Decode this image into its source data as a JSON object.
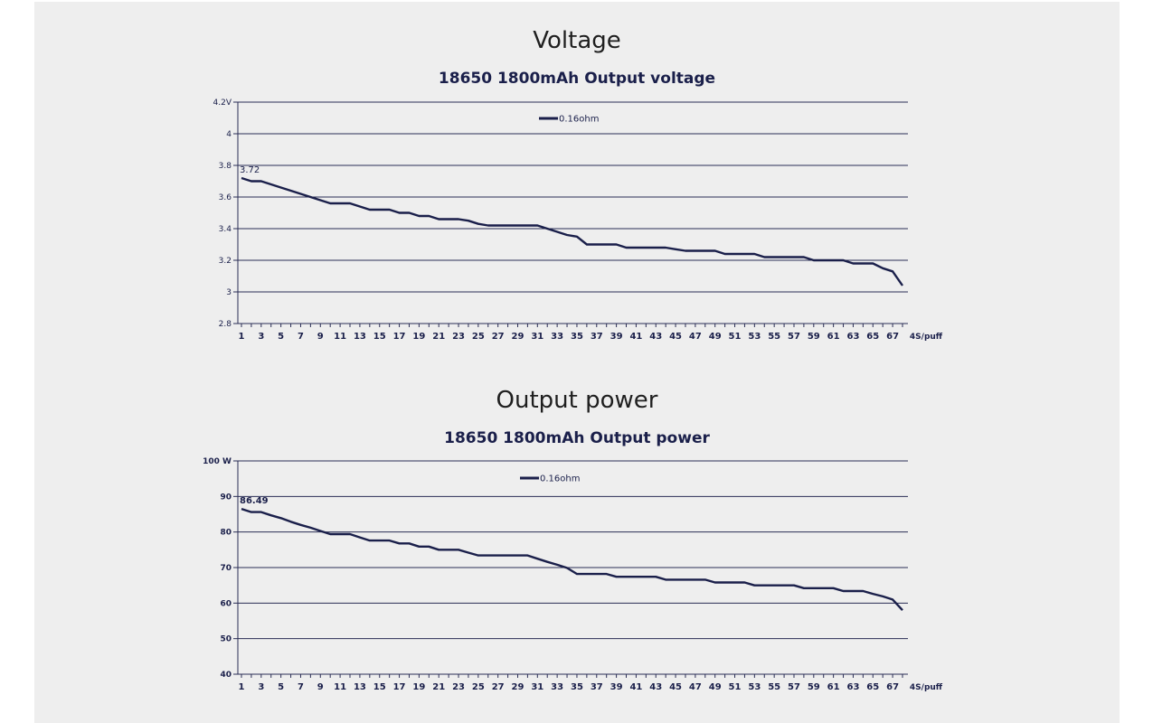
{
  "sections": [
    {
      "title": "Voltage",
      "chart_data": {
        "type": "line",
        "title": "18650  1800mAh Output voltage",
        "xlabel": "4S/puff",
        "ylabel": "",
        "x": [
          1,
          2,
          3,
          4,
          5,
          6,
          7,
          8,
          9,
          10,
          11,
          12,
          13,
          14,
          15,
          16,
          17,
          18,
          19,
          20,
          21,
          22,
          23,
          24,
          25,
          26,
          27,
          28,
          29,
          30,
          31,
          32,
          33,
          34,
          35,
          36,
          37,
          38,
          39,
          40,
          41,
          42,
          43,
          44,
          45,
          46,
          47,
          48,
          49,
          50,
          51,
          52,
          53,
          54,
          55,
          56,
          57,
          58,
          59,
          60,
          61,
          62,
          63,
          64,
          65,
          66,
          67,
          68
        ],
        "x_tick_labels": [
          "1",
          "3",
          "5",
          "7",
          "9",
          "11",
          "13",
          "15",
          "17",
          "19",
          "21",
          "23",
          "25",
          "27",
          "29",
          "31",
          "33",
          "35",
          "37",
          "39",
          "41",
          "43",
          "45",
          "47",
          "49",
          "51",
          "53",
          "55",
          "57",
          "59",
          "61",
          "63",
          "65",
          "67"
        ],
        "y_tick_labels": [
          "4.2V",
          "4",
          "3.8",
          "3.6",
          "3.4",
          "3.2",
          "3",
          "2.8"
        ],
        "ylim": [
          2.8,
          4.2
        ],
        "grid": true,
        "legend_position": "top-center",
        "series": [
          {
            "name": "0.16ohm",
            "color": "#1a1f4a",
            "values": [
              3.72,
              3.7,
              3.7,
              3.68,
              3.66,
              3.64,
              3.62,
              3.6,
              3.58,
              3.56,
              3.56,
              3.56,
              3.54,
              3.52,
              3.52,
              3.52,
              3.5,
              3.5,
              3.48,
              3.48,
              3.46,
              3.46,
              3.46,
              3.45,
              3.43,
              3.42,
              3.42,
              3.42,
              3.42,
              3.42,
              3.42,
              3.4,
              3.38,
              3.36,
              3.35,
              3.3,
              3.3,
              3.3,
              3.3,
              3.28,
              3.28,
              3.28,
              3.28,
              3.28,
              3.27,
              3.26,
              3.26,
              3.26,
              3.26,
              3.24,
              3.24,
              3.24,
              3.24,
              3.22,
              3.22,
              3.22,
              3.22,
              3.22,
              3.2,
              3.2,
              3.2,
              3.2,
              3.18,
              3.18,
              3.18,
              3.15,
              3.13,
              3.04
            ]
          }
        ],
        "annotations": [
          "3.72"
        ]
      }
    },
    {
      "title": "Output power",
      "chart_data": {
        "type": "line",
        "title": "18650  1800mAh Output power",
        "xlabel": "4S/puff",
        "ylabel": "",
        "x": [
          1,
          2,
          3,
          4,
          5,
          6,
          7,
          8,
          9,
          10,
          11,
          12,
          13,
          14,
          15,
          16,
          17,
          18,
          19,
          20,
          21,
          22,
          23,
          24,
          25,
          26,
          27,
          28,
          29,
          30,
          31,
          32,
          33,
          34,
          35,
          36,
          37,
          38,
          39,
          40,
          41,
          42,
          43,
          44,
          45,
          46,
          47,
          48,
          49,
          50,
          51,
          52,
          53,
          54,
          55,
          56,
          57,
          58,
          59,
          60,
          61,
          62,
          63,
          64,
          65,
          66,
          67,
          68
        ],
        "x_tick_labels": [
          "1",
          "3",
          "5",
          "7",
          "9",
          "11",
          "13",
          "15",
          "17",
          "19",
          "21",
          "23",
          "25",
          "27",
          "29",
          "31",
          "33",
          "35",
          "37",
          "39",
          "41",
          "43",
          "45",
          "47",
          "49",
          "51",
          "53",
          "55",
          "57",
          "59",
          "61",
          "63",
          "65",
          "67"
        ],
        "y_tick_labels": [
          "100 W",
          "90",
          "80",
          "70",
          "60",
          "50",
          "40"
        ],
        "ylim": [
          40,
          100
        ],
        "grid": true,
        "legend_position": "top-center",
        "series": [
          {
            "name": "0.16ohm",
            "color": "#1a1f4a",
            "values": [
              86.49,
              85.6,
              85.6,
              84.7,
              83.9,
              82.9,
              82.0,
              81.2,
              80.3,
              79.4,
              79.4,
              79.4,
              78.5,
              77.6,
              77.6,
              77.6,
              76.8,
              76.8,
              75.9,
              75.9,
              75.0,
              75.0,
              75.0,
              74.2,
              73.4,
              73.4,
              73.4,
              73.4,
              73.4,
              73.4,
              72.5,
              71.6,
              70.8,
              69.9,
              68.2,
              68.2,
              68.2,
              68.2,
              67.4,
              67.4,
              67.4,
              67.4,
              67.4,
              66.6,
              66.6,
              66.6,
              66.6,
              66.6,
              65.8,
              65.8,
              65.8,
              65.8,
              65.0,
              65.0,
              65.0,
              65.0,
              65.0,
              64.2,
              64.2,
              64.2,
              64.2,
              63.4,
              63.4,
              63.4,
              62.6,
              61.9,
              61.0,
              58.0
            ]
          }
        ],
        "annotations": [
          "86.49"
        ]
      }
    }
  ]
}
